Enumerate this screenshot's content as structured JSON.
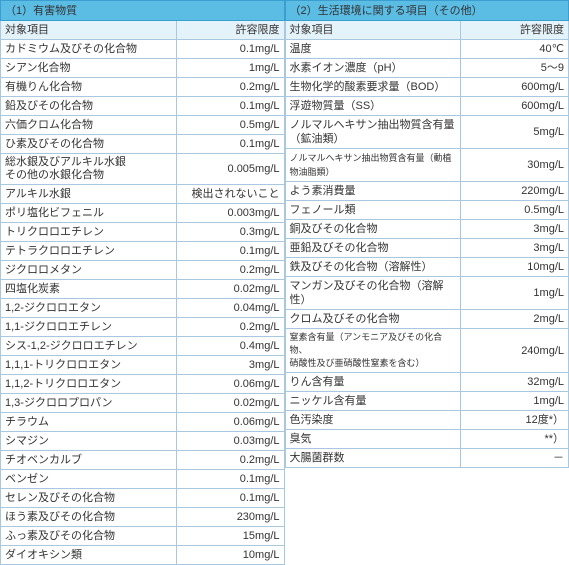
{
  "left": {
    "title": "（1）有害物質",
    "col1": "対象項目",
    "col2": "許容限度",
    "rows": [
      {
        "name": "カドミウム及びその化合物",
        "val": "0.1mg/L"
      },
      {
        "name": "シアン化合物",
        "val": "1mg/L"
      },
      {
        "name": "有機りん化合物",
        "val": "0.2mg/L"
      },
      {
        "name": "鉛及びその化合物",
        "val": "0.1mg/L"
      },
      {
        "name": "六価クロム化合物",
        "val": "0.5mg/L"
      },
      {
        "name": "ひ素及びその化合物",
        "val": "0.1mg/L"
      },
      {
        "name": "総水銀及びアルキル水銀\nその他の水銀化合物",
        "val": "0.005mg/L"
      },
      {
        "name": "アルキル水銀",
        "val": "検出されないこと"
      },
      {
        "name": "ポリ塩化ビフェニル",
        "val": "0.003mg/L"
      },
      {
        "name": "トリクロロエチレン",
        "val": "0.3mg/L"
      },
      {
        "name": "テトラクロロエチレン",
        "val": "0.1mg/L"
      },
      {
        "name": "ジクロロメタン",
        "val": "0.2mg/L"
      },
      {
        "name": "四塩化炭素",
        "val": "0.02mg/L"
      },
      {
        "name": "1,2-ジクロロエタン",
        "val": "0.04mg/L"
      },
      {
        "name": "1,1-ジクロロエチレン",
        "val": "0.2mg/L"
      },
      {
        "name": "シス-1,2-ジクロロエチレン",
        "val": "0.4mg/L"
      },
      {
        "name": "1,1,1-トリクロロエタン",
        "val": "3mg/L"
      },
      {
        "name": "1,1,2-トリクロロエタン",
        "val": "0.06mg/L"
      },
      {
        "name": "1,3-ジクロロプロパン",
        "val": "0.02mg/L"
      },
      {
        "name": "チラウム",
        "val": "0.06mg/L"
      },
      {
        "name": "シマジン",
        "val": "0.03mg/L"
      },
      {
        "name": "チオベンカルブ",
        "val": "0.2mg/L"
      },
      {
        "name": "ベンゼン",
        "val": "0.1mg/L"
      },
      {
        "name": "セレン及びその化合物",
        "val": "0.1mg/L"
      },
      {
        "name": "ほう素及びその化合物",
        "val": "230mg/L"
      },
      {
        "name": "ふっ素及びその化合物",
        "val": "15mg/L"
      },
      {
        "name": "ダイオキシン類",
        "val": "10mg/L"
      }
    ]
  },
  "right": {
    "title": "（2）生活環境に関する項目（その他）",
    "col1": "対象項目",
    "col2": "許容限度",
    "rows": [
      {
        "name": "温度",
        "val": "40℃"
      },
      {
        "name": "水素イオン濃度（pH）",
        "val": "5～9"
      },
      {
        "name": "生物化学的酸素要求量（BOD）",
        "val": "600mg/L"
      },
      {
        "name": "浮遊物質量（SS）",
        "val": "600mg/L"
      },
      {
        "name": "ノルマルヘキサン抽出物質含有量（鉱油類）",
        "val": "5mg/L"
      },
      {
        "name": "ノルマルヘキサン抽出物質含有量（動植物油脂類）",
        "val": "30mg/L"
      },
      {
        "name": "よう素消費量",
        "val": "220mg/L"
      },
      {
        "name": "フェノール類",
        "val": "0.5mg/L"
      },
      {
        "name": "銅及びその化合物",
        "val": "3mg/L"
      },
      {
        "name": "亜鉛及びその化合物",
        "val": "3mg/L"
      },
      {
        "name": "鉄及びその化合物（溶解性）",
        "val": "10mg/L"
      },
      {
        "name": "マンガン及びその化合物（溶解性）",
        "val": "1mg/L"
      },
      {
        "name": "クロム及びその化合物",
        "val": "2mg/L"
      },
      {
        "name": "窒素含有量（アンモニア及びその化合物、\n硝酸性及び亜硝酸性窒素を含む）",
        "val": "240mg/L"
      },
      {
        "name": "りん含有量",
        "val": "32mg/L"
      },
      {
        "name": "ニッケル含有量",
        "val": "1mg/L"
      },
      {
        "name": "色汚染度",
        "val": "12度*）"
      },
      {
        "name": "臭気",
        "val": "**）"
      },
      {
        "name": "大腸菌群数",
        "val": "－"
      }
    ]
  }
}
